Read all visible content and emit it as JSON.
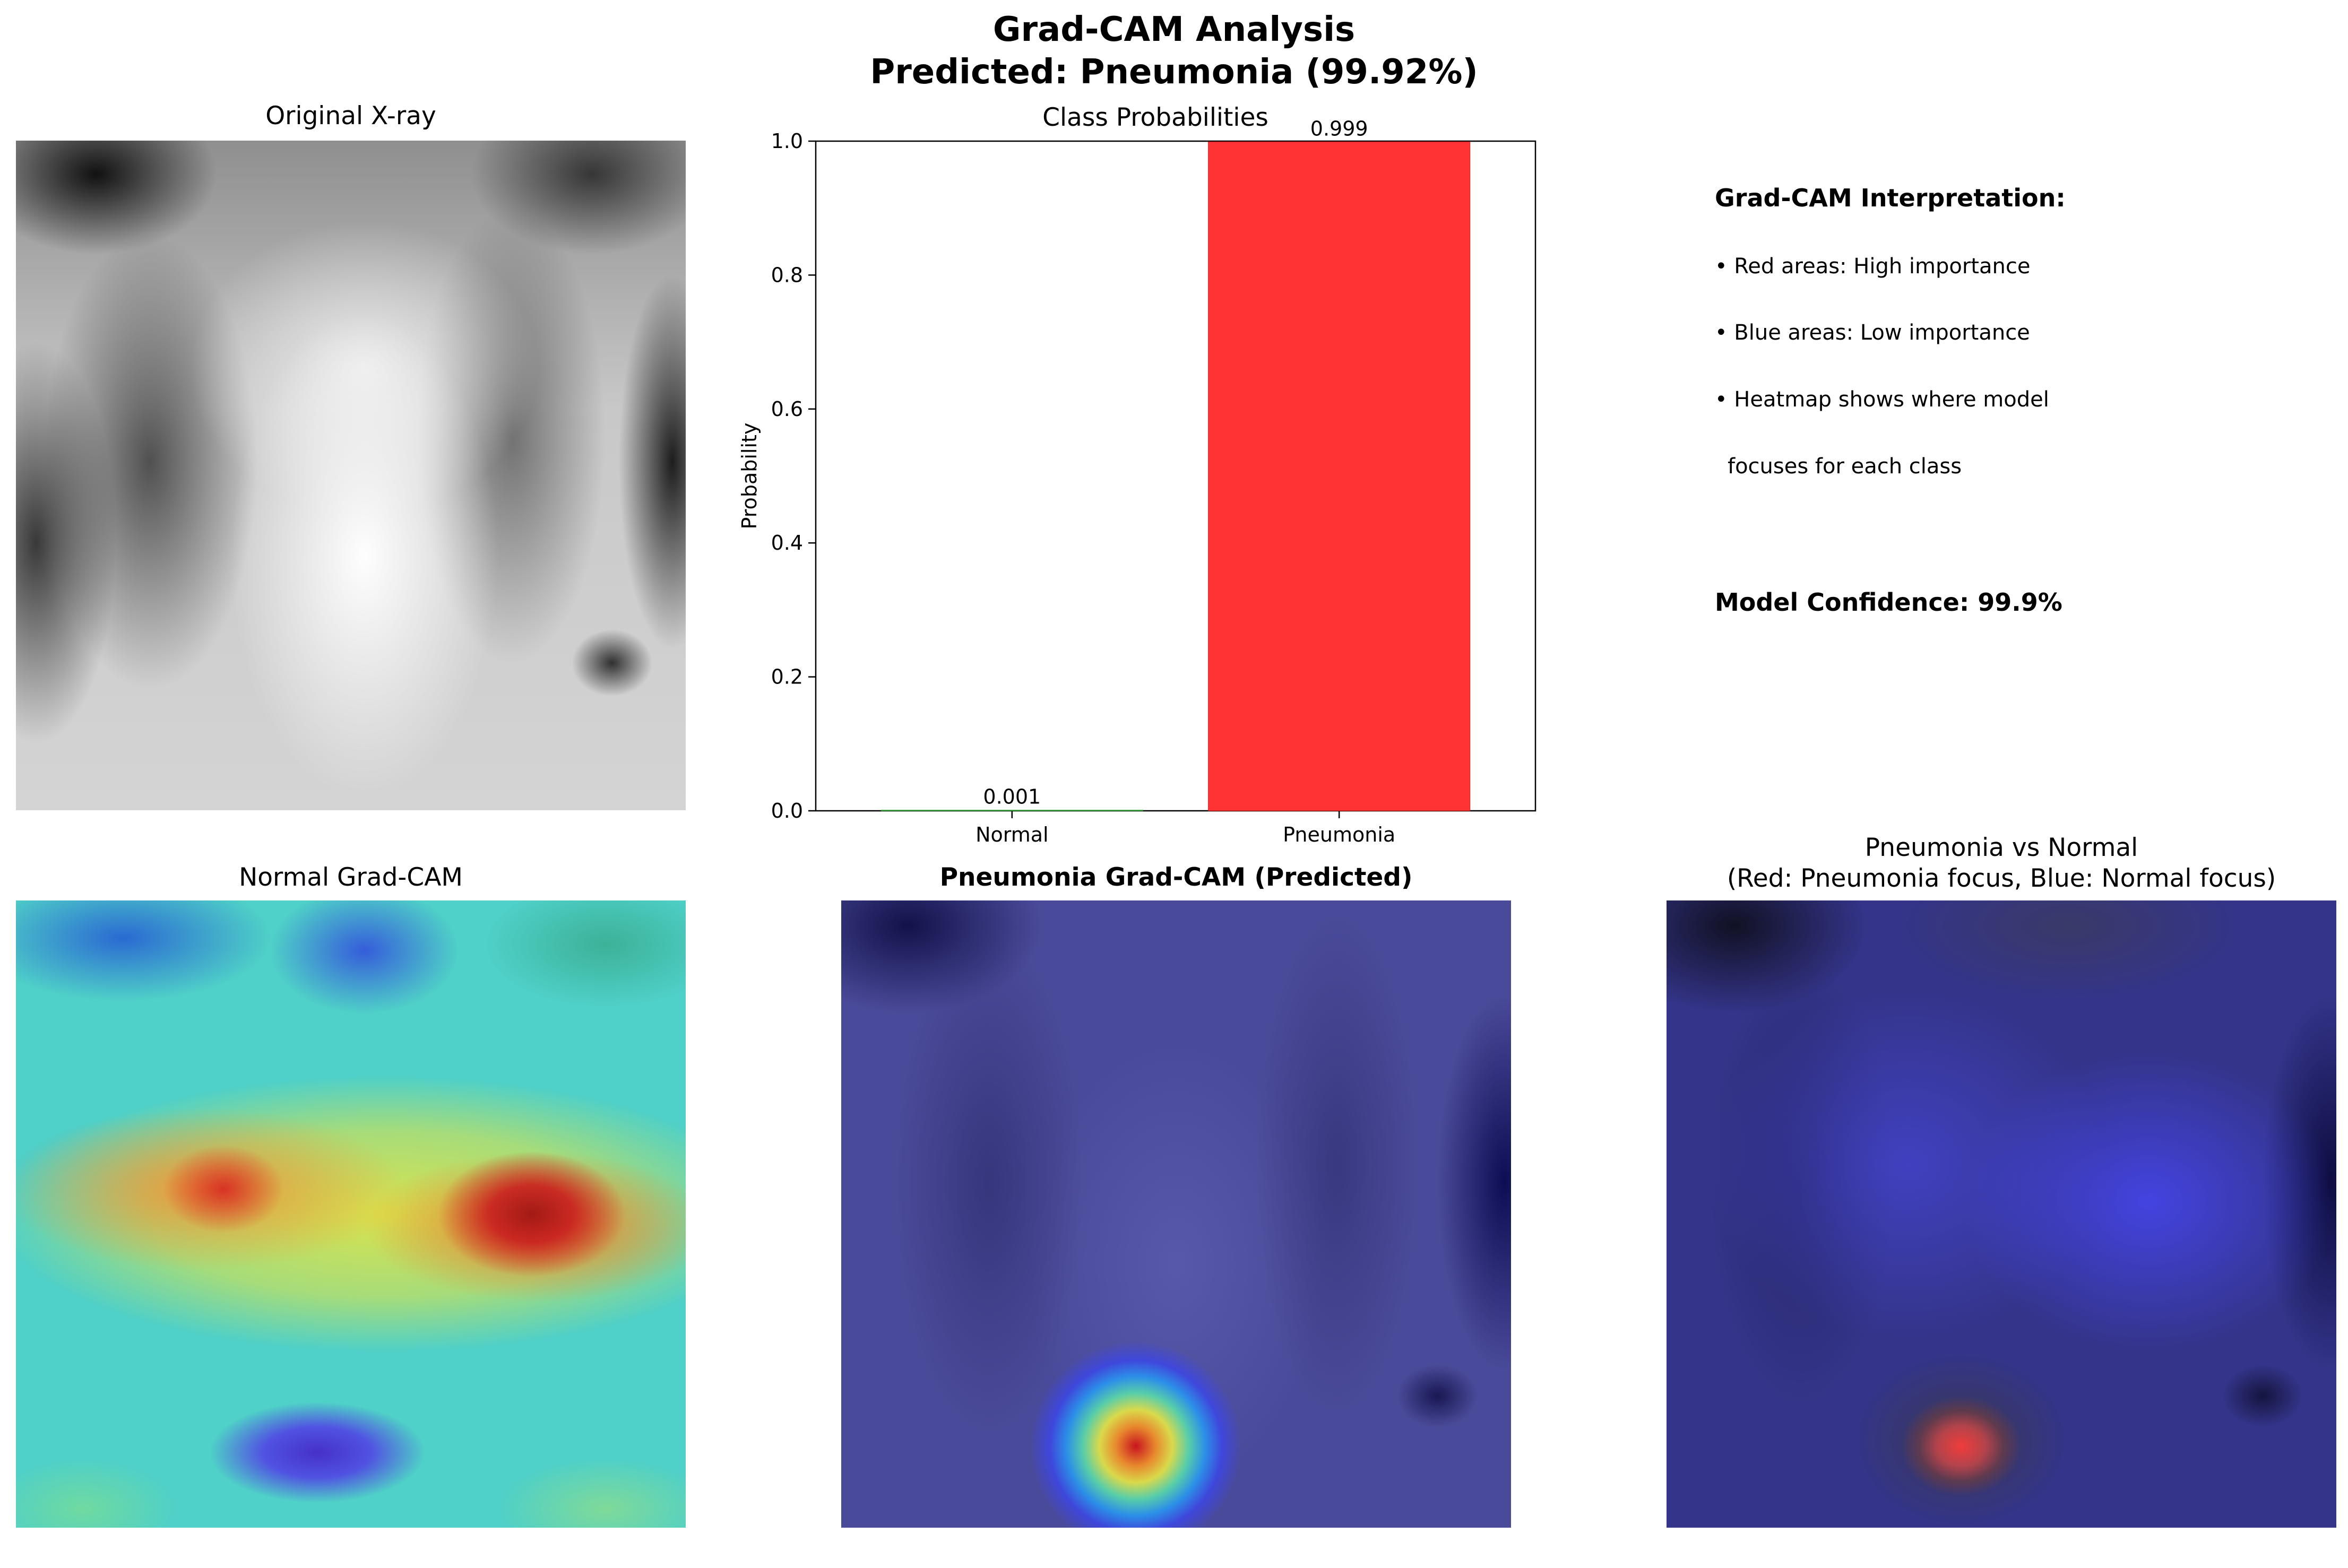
{
  "figure": {
    "title_line1": "Grad-CAM Analysis",
    "title_line2": "Predicted: Pneumonia (99.92%)"
  },
  "panels": {
    "original": {
      "title": "Original X-ray"
    },
    "normal_cam": {
      "title": "Normal Grad-CAM"
    },
    "pneumonia_cam": {
      "title": "Pneumonia Grad-CAM (Predicted)"
    },
    "diff": {
      "title_line1": "Pneumonia vs Normal",
      "title_line2": "(Red: Pneumonia focus, Blue: Normal focus)"
    }
  },
  "interpretation": {
    "heading": "Grad-CAM Interpretation:",
    "line1": "• Red areas: High importance",
    "line2": "• Blue areas: Low importance",
    "line3": "• Heatmap shows where model",
    "line4": "focuses for each class",
    "confidence": "Model Confidence: 99.9%"
  },
  "chart_data": {
    "type": "bar",
    "title": "Class Probabilities",
    "ylabel": "Probability",
    "xlabel": "",
    "categories": [
      "Normal",
      "Pneumonia"
    ],
    "values": [
      0.001,
      0.999
    ],
    "value_labels": [
      "0.001",
      "0.999"
    ],
    "colors": [
      "#2ca02c",
      "#ff3333"
    ],
    "ylim": [
      0,
      1.0
    ],
    "yticks": [
      0.0,
      0.2,
      0.4,
      0.6,
      0.8,
      1.0
    ],
    "ytick_labels": [
      "0.0",
      "0.2",
      "0.4",
      "0.6",
      "0.8",
      "1.0"
    ],
    "grid": false,
    "legend": "none"
  }
}
